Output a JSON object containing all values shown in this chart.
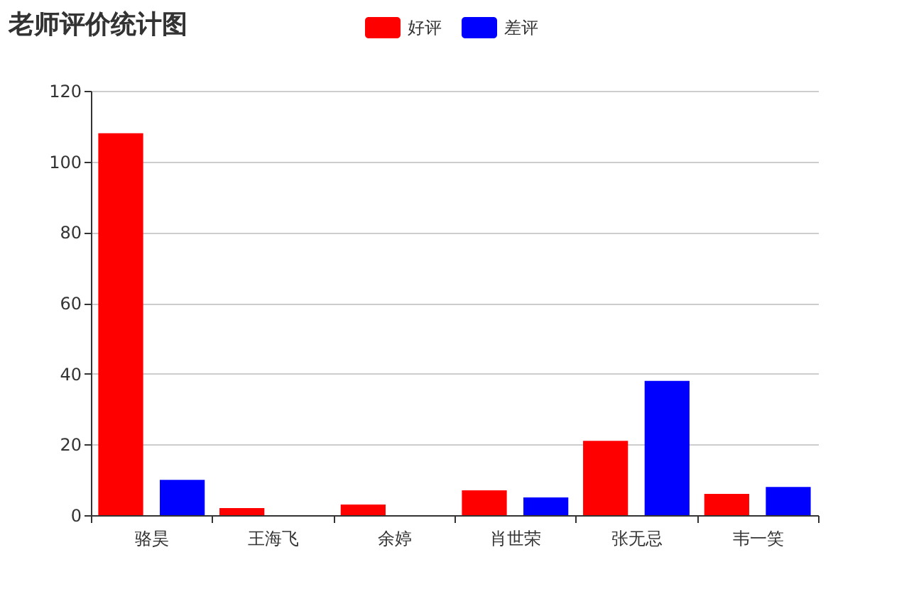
{
  "chart_data": {
    "type": "bar",
    "title": "老师评价统计图",
    "categories": [
      "骆昊",
      "王海飞",
      "余婷",
      "肖世荣",
      "张无忌",
      "韦一笑"
    ],
    "series": [
      {
        "name": "好评",
        "color": "#ff0000",
        "values": [
          108,
          2,
          3,
          7,
          21,
          6
        ]
      },
      {
        "name": "差评",
        "color": "#0000ff",
        "values": [
          10,
          0,
          0,
          5,
          38,
          8
        ]
      }
    ],
    "ylim": [
      0,
      120
    ],
    "yticks": [
      0,
      20,
      40,
      60,
      80,
      100,
      120
    ],
    "grid": "y",
    "legend": "top"
  }
}
